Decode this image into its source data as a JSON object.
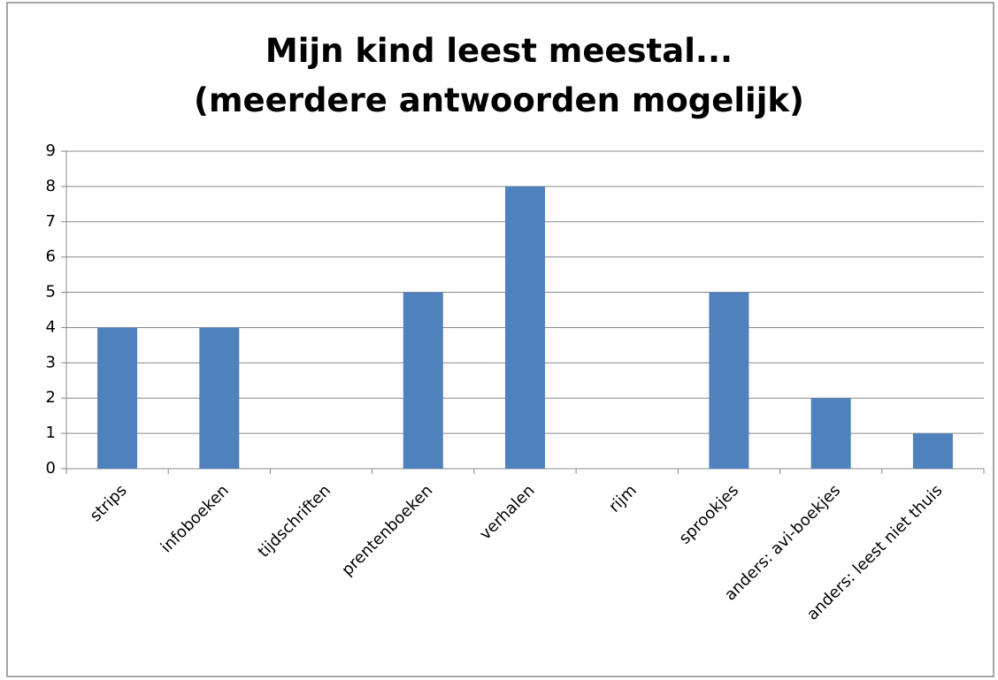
{
  "chart_data": {
    "type": "bar",
    "title": "Mijn kind leest meestal... (meerdere antwoorden mogelijk)",
    "categories": [
      "strips",
      "infoboeken",
      "tijdschriften",
      "prentenboeken",
      "verhalen",
      "rijm",
      "sprookjes",
      "anders: avi-boekjes",
      "anders: leest niet thuis"
    ],
    "values": [
      4,
      4,
      0,
      5,
      8,
      0,
      5,
      2,
      1
    ],
    "color": "#4f81bd",
    "ylim": [
      0,
      9
    ],
    "yticks": [
      0,
      1,
      2,
      3,
      4,
      5,
      6,
      7,
      8,
      9
    ],
    "grid": true
  }
}
